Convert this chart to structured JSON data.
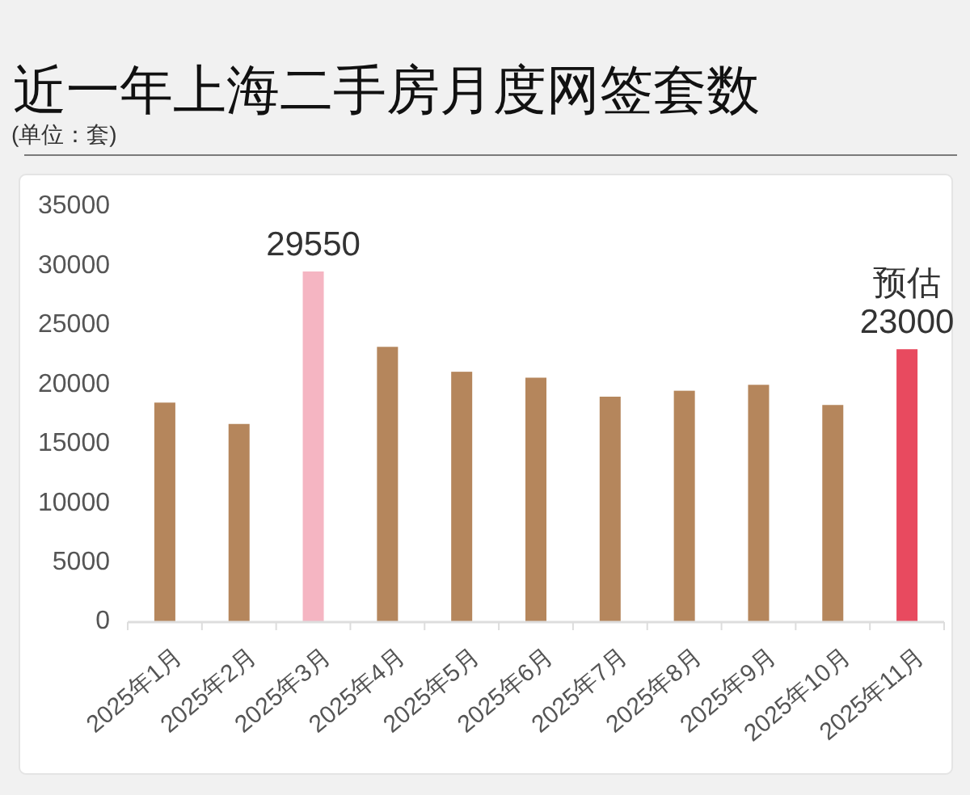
{
  "chart_data": {
    "type": "bar",
    "title": "近一年上海二手房月度网签套数",
    "subtitle": "(单位：套)",
    "categories": [
      "2025年1月",
      "2025年2月",
      "2025年3月",
      "2025年4月",
      "2025年5月",
      "2025年6月",
      "2025年7月",
      "2025年8月",
      "2025年9月",
      "2025年10月",
      "2025年11月"
    ],
    "values": [
      18500,
      16700,
      29550,
      23200,
      21100,
      20600,
      19000,
      19500,
      20000,
      18300,
      23000
    ],
    "colors": [
      "#b5865c",
      "#b5865c",
      "#f5b5c2",
      "#b5865c",
      "#b5865c",
      "#b5865c",
      "#b5865c",
      "#b5865c",
      "#b5865c",
      "#b5865c",
      "#e84a5f"
    ],
    "ylim": [
      0,
      35000
    ],
    "yticks": [
      0,
      5000,
      10000,
      15000,
      20000,
      25000,
      30000,
      35000
    ],
    "value_labels": [
      null,
      null,
      "29550",
      null,
      null,
      null,
      null,
      null,
      null,
      null,
      "23000"
    ],
    "annotations": [
      "预估"
    ]
  }
}
